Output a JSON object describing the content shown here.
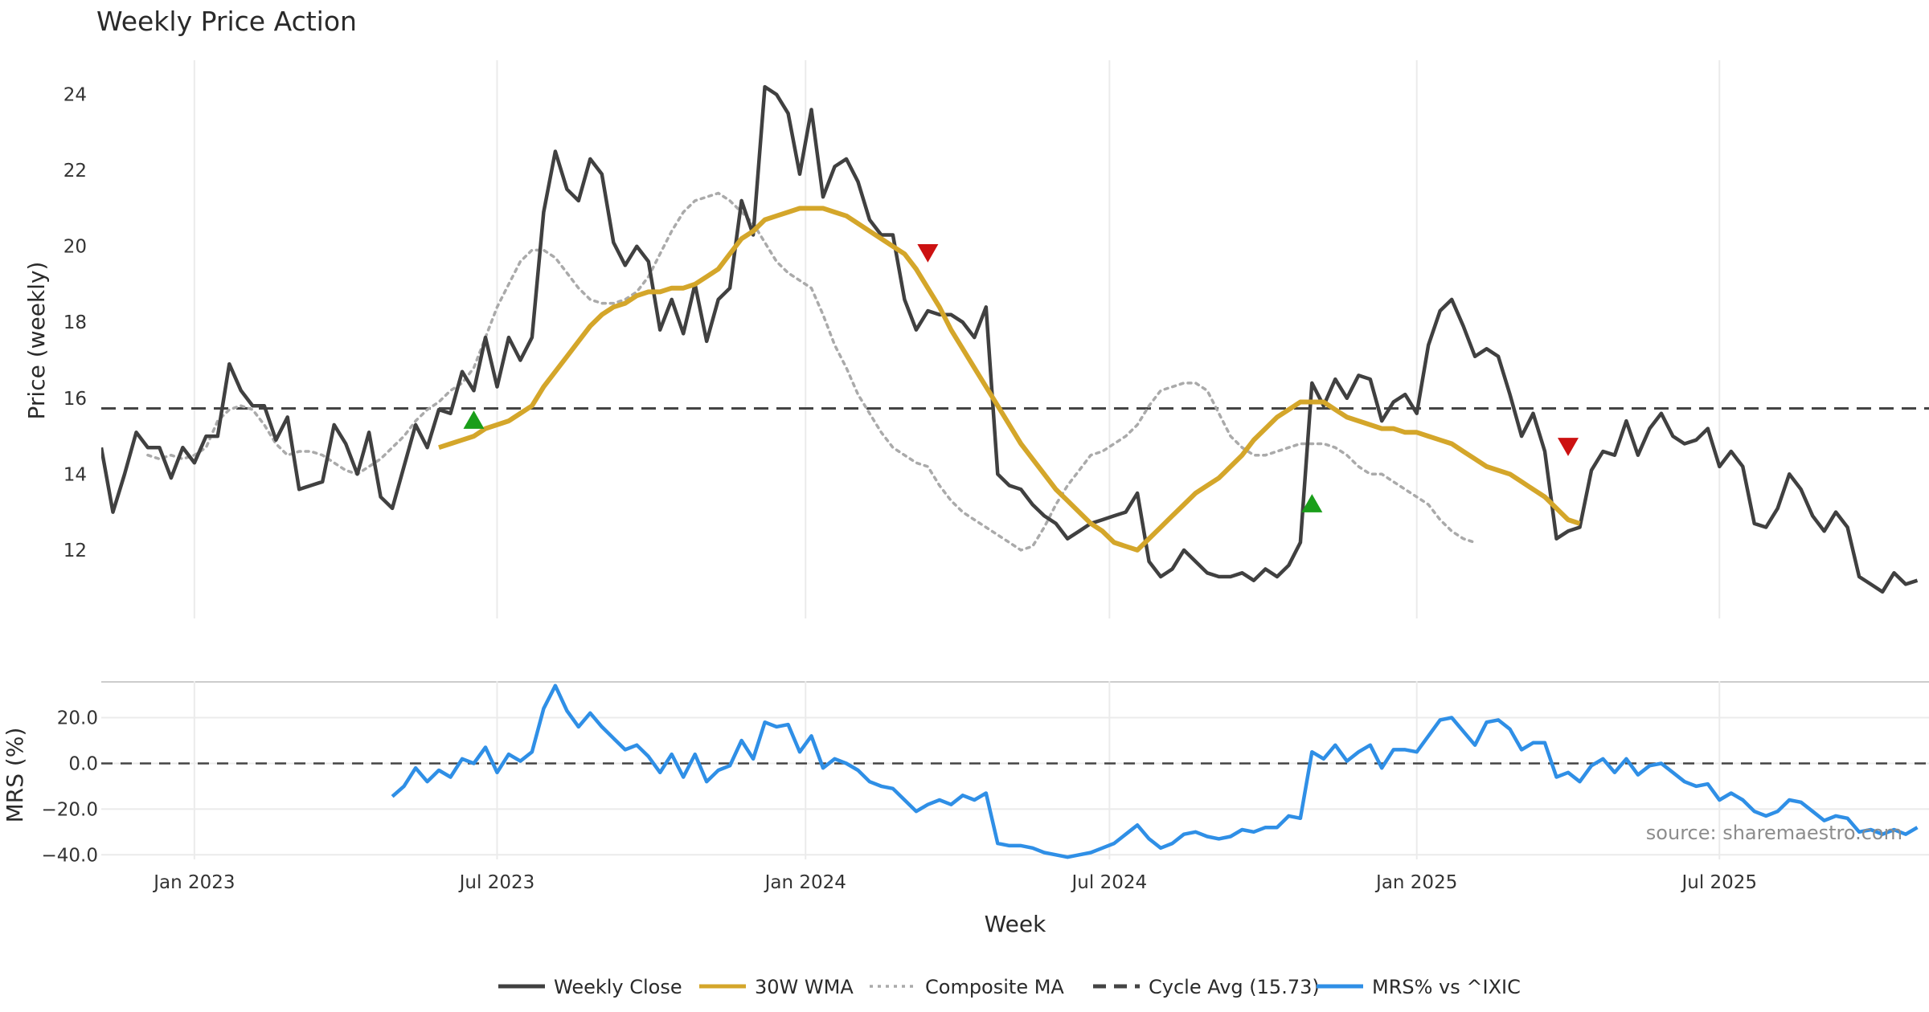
{
  "colors": {
    "close": "#404040",
    "wma": "#d4a62a",
    "composite": "#aaaaaa",
    "cycle": "#444444",
    "mrs": "#2f8fe6",
    "buy": "#1a9e1a",
    "sell": "#cc1111",
    "grid": "#ebebeb"
  },
  "chart_data": {
    "type": "line",
    "title": "Weekly Price Action",
    "xlabel": "Week",
    "source": "source: sharemaestro.com",
    "x_ticks": [
      {
        "label": "Jan 2023",
        "week": 0
      },
      {
        "label": "Jul 2023",
        "week": 26
      },
      {
        "label": "Jan 2024",
        "week": 52.5
      },
      {
        "label": "Jul 2024",
        "week": 78.6
      },
      {
        "label": "Jan 2025",
        "week": 105
      },
      {
        "label": "Jul 2025",
        "week": 131
      }
    ],
    "x_range": [
      -8,
      149
    ],
    "price_panel": {
      "ylabel": "Price (weekly)",
      "ylim": [
        10.2,
        24.9
      ],
      "y_ticks": [
        {
          "label": "12",
          "value": 12
        },
        {
          "label": "14",
          "value": 14
        },
        {
          "label": "16",
          "value": 16
        },
        {
          "label": "18",
          "value": 18
        },
        {
          "label": "20",
          "value": 20
        },
        {
          "label": "22",
          "value": 22
        },
        {
          "label": "24",
          "value": 24
        }
      ],
      "weekly_close": {
        "name": "Weekly Close",
        "start_week": -8,
        "values": [
          14.7,
          13.0,
          14.0,
          15.1,
          14.7,
          14.7,
          13.9,
          14.7,
          14.3,
          15.0,
          15.0,
          16.9,
          16.2,
          15.8,
          15.8,
          14.9,
          15.5,
          13.6,
          13.7,
          13.8,
          15.3,
          14.8,
          14.0,
          15.1,
          13.4,
          13.1,
          14.2,
          15.3,
          14.7,
          15.7,
          15.6,
          16.7,
          16.2,
          17.6,
          16.3,
          17.6,
          17.0,
          17.6,
          20.9,
          22.5,
          21.5,
          21.2,
          22.3,
          21.9,
          20.1,
          19.5,
          20.0,
          19.6,
          17.8,
          18.6,
          17.7,
          19.0,
          17.5,
          18.6,
          18.9,
          21.2,
          20.3,
          24.2,
          24.0,
          23.5,
          21.9,
          23.6,
          21.3,
          22.1,
          22.3,
          21.7,
          20.7,
          20.3,
          20.3,
          18.6,
          17.8,
          18.3,
          18.2,
          18.2,
          18.0,
          17.6,
          18.4,
          14.0,
          13.7,
          13.6,
          13.2,
          12.9,
          12.7,
          12.3,
          12.5,
          12.7,
          12.8,
          12.9,
          13.0,
          13.5,
          11.7,
          11.3,
          11.5,
          12.0,
          11.7,
          11.4,
          11.3,
          11.3,
          11.4,
          11.2,
          11.5,
          11.3,
          11.6,
          12.2,
          16.4,
          15.8,
          16.5,
          16.0,
          16.6,
          16.5,
          15.4,
          15.9,
          16.1,
          15.6,
          17.4,
          18.3,
          18.6,
          17.9,
          17.1,
          17.3,
          17.1,
          16.1,
          15.0,
          15.6,
          14.6,
          12.3,
          12.5,
          12.6,
          14.1,
          14.6,
          14.5,
          15.4,
          14.5,
          15.2,
          15.6,
          15.0,
          14.8,
          14.9,
          15.2,
          14.2,
          14.6,
          14.2,
          12.7,
          12.6,
          13.1,
          14.0,
          13.6,
          12.9,
          12.5,
          13.0,
          12.6,
          11.3,
          11.1,
          10.9,
          11.4,
          11.1,
          11.2
        ]
      },
      "wma_30w": {
        "name": "30W WMA",
        "start_week": 21,
        "values": [
          14.7,
          14.8,
          14.9,
          15.0,
          15.2,
          15.3,
          15.4,
          15.6,
          15.8,
          16.3,
          16.7,
          17.1,
          17.5,
          17.9,
          18.2,
          18.4,
          18.5,
          18.7,
          18.8,
          18.8,
          18.9,
          18.9,
          19.0,
          19.2,
          19.4,
          19.8,
          20.2,
          20.4,
          20.7,
          20.8,
          20.9,
          21.0,
          21.0,
          21.0,
          20.9,
          20.8,
          20.6,
          20.4,
          20.2,
          20.0,
          19.8,
          19.4,
          18.9,
          18.4,
          17.8,
          17.3,
          16.8,
          16.3,
          15.8,
          15.3,
          14.8,
          14.4,
          14.0,
          13.6,
          13.3,
          13.0,
          12.7,
          12.5,
          12.2,
          12.1,
          12.0,
          12.3,
          12.6,
          12.9,
          13.2,
          13.5,
          13.7,
          13.9,
          14.2,
          14.5,
          14.9,
          15.2,
          15.5,
          15.7,
          15.9,
          15.9,
          15.9,
          15.7,
          15.5,
          15.4,
          15.3,
          15.2,
          15.2,
          15.1,
          15.1,
          15.0,
          14.9,
          14.8,
          14.6,
          14.4,
          14.2,
          14.1,
          14.0,
          13.8,
          13.6,
          13.4,
          13.1,
          12.8,
          12.7
        ]
      },
      "composite_ma": {
        "name": "Composite MA",
        "start_week": -4,
        "values": [
          14.5,
          14.4,
          14.5,
          14.4,
          14.5,
          14.7,
          15.4,
          15.7,
          15.8,
          15.7,
          15.3,
          14.8,
          14.5,
          14.6,
          14.6,
          14.5,
          14.3,
          14.1,
          14.0,
          14.2,
          14.4,
          14.7,
          15.0,
          15.4,
          15.7,
          15.9,
          16.2,
          16.4,
          16.8,
          17.6,
          18.4,
          19.0,
          19.6,
          19.9,
          19.9,
          19.7,
          19.3,
          18.9,
          18.6,
          18.5,
          18.5,
          18.6,
          18.8,
          19.2,
          19.8,
          20.4,
          20.9,
          21.2,
          21.3,
          21.4,
          21.2,
          20.9,
          20.6,
          20.1,
          19.6,
          19.3,
          19.1,
          18.9,
          18.2,
          17.4,
          16.8,
          16.1,
          15.6,
          15.1,
          14.7,
          14.5,
          14.3,
          14.2,
          13.7,
          13.3,
          13.0,
          12.8,
          12.6,
          12.4,
          12.2,
          12.0,
          12.1,
          12.6,
          13.2,
          13.7,
          14.1,
          14.5,
          14.6,
          14.8,
          15.0,
          15.3,
          15.8,
          16.2,
          16.3,
          16.4,
          16.4,
          16.2,
          15.6,
          15.0,
          14.7,
          14.5,
          14.5,
          14.6,
          14.7,
          14.8,
          14.8,
          14.8,
          14.7,
          14.5,
          14.2,
          14.0,
          14.0,
          13.8,
          13.6,
          13.4,
          13.2,
          12.8,
          12.5,
          12.3,
          12.2
        ]
      },
      "cycle_avg": {
        "name": "Cycle Avg (15.73)",
        "value": 15.73
      },
      "markers": [
        {
          "type": "buy",
          "week": 24,
          "value": 15.4
        },
        {
          "type": "sell",
          "week": 63,
          "value": 19.85
        },
        {
          "type": "buy",
          "week": 96,
          "value": 13.2
        },
        {
          "type": "sell",
          "week": 118,
          "value": 14.75
        }
      ]
    },
    "mrs_panel": {
      "ylabel": "MRS (%)",
      "ylim": [
        -42,
        36
      ],
      "y_ticks": [
        {
          "label": "−40.0",
          "value": -40
        },
        {
          "label": "−20.0",
          "value": -20
        },
        {
          "label": "0.0",
          "value": 0
        },
        {
          "label": "20.0",
          "value": 20
        }
      ],
      "zero_line": 0,
      "mrs": {
        "name": "MRS% vs ^IXIC",
        "start_week": 17,
        "values": [
          -14.5,
          -10.0,
          -2.0,
          -8.0,
          -3.0,
          -6.0,
          2.0,
          0.0,
          7.0,
          -4.0,
          4.0,
          1.0,
          5.0,
          24.0,
          34.0,
          23.0,
          16.0,
          22.0,
          16.0,
          11.0,
          6.0,
          8.0,
          3.0,
          -4.0,
          4.0,
          -6.0,
          4.0,
          -8.0,
          -3.0,
          -1.0,
          10.0,
          2.0,
          18.0,
          16.0,
          17.0,
          5.0,
          12.0,
          -2.0,
          2.0,
          0.0,
          -3.0,
          -8.0,
          -10.0,
          -11.0,
          -16.0,
          -21.0,
          -18.0,
          -16.0,
          -18.0,
          -14.0,
          -16.0,
          -13.0,
          -35.0,
          -36.0,
          -36.0,
          -37.0,
          -39.0,
          -40.0,
          -41.0,
          -40.0,
          -39.0,
          -37.0,
          -35.0,
          -31.0,
          -27.0,
          -33.0,
          -37.0,
          -35.0,
          -31.0,
          -30.0,
          -32.0,
          -33.0,
          -32.0,
          -29.0,
          -30.0,
          -28.0,
          -28.0,
          -23.0,
          -24.0,
          5.0,
          2.0,
          8.0,
          1.0,
          5.0,
          8.0,
          -2.0,
          6.0,
          6.0,
          5.0,
          12.0,
          19.0,
          20.0,
          14.0,
          8.0,
          18.0,
          19.0,
          15.0,
          6.0,
          9.0,
          9.0,
          -6.0,
          -4.0,
          -8.0,
          -1.0,
          2.0,
          -4.0,
          2.0,
          -5.0,
          -1.0,
          0.0,
          -4.0,
          -8.0,
          -10.0,
          -9.0,
          -16.0,
          -13.0,
          -16.0,
          -21.0,
          -23.0,
          -21.0,
          -16.0,
          -17.0,
          -21.0,
          -25.0,
          -23.0,
          -24.0,
          -30.0,
          -29.0,
          -31.0,
          -29.0,
          -31.0,
          -28.0
        ]
      }
    },
    "legend": [
      {
        "key": "close",
        "label": "Weekly Close",
        "style": "solid"
      },
      {
        "key": "wma",
        "label": "30W WMA",
        "style": "solid"
      },
      {
        "key": "composite",
        "label": "Composite MA",
        "style": "dotted"
      },
      {
        "key": "cycle",
        "label": "Cycle Avg (15.73)",
        "style": "dashed"
      },
      {
        "key": "mrs",
        "label": "MRS% vs ^IXIC",
        "style": "solid"
      }
    ]
  }
}
